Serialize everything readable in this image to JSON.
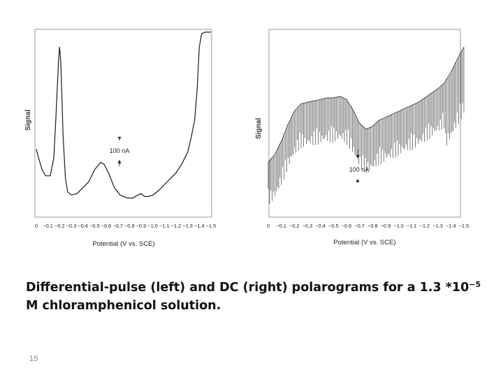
{
  "slide": {
    "caption_main": "Differential-pulse (left) and DC (right) polarograms for a 1.3 *10",
    "caption_exp": "−5",
    "caption_line2": "M chloramphenicol solution.",
    "page_number": "15"
  },
  "chart_data": [
    {
      "type": "line",
      "title": "",
      "xlabel": "Potential (V vs. SCE)",
      "ylabel": "Signal",
      "xlim": [
        0,
        -1.5
      ],
      "ticks": [
        "0",
        "−0.1",
        "−0.2",
        "−0.3",
        "−0.4",
        "−0.5",
        "−0.6",
        "−0.7",
        "−0.8",
        "−0.9",
        "−1.0",
        "−1.1",
        "−1.2",
        "−1.3",
        "−1.4",
        "−1.5"
      ],
      "annotation": "100 nA",
      "series": [
        {
          "x": [
            0,
            -0.02,
            -0.05,
            -0.08,
            -0.12,
            -0.15,
            -0.17,
            -0.19,
            -0.2,
            -0.21,
            -0.22,
            -0.23,
            -0.25,
            -0.27,
            -0.3,
            -0.35,
            -0.4,
            -0.45,
            -0.5,
            -0.55,
            -0.58,
            -0.62,
            -0.67,
            -0.72,
            -0.78,
            -0.83,
            -0.87,
            -0.9,
            -0.93,
            -0.96,
            -1.0,
            -1.05,
            -1.1,
            -1.15,
            -1.2,
            -1.25,
            -1.3,
            -1.33,
            -1.36,
            -1.38,
            -1.4,
            -1.42,
            -1.45,
            -1.5
          ],
          "y": [
            0.36,
            0.3,
            0.22,
            0.18,
            0.18,
            0.3,
            0.6,
            0.95,
            1.05,
            0.95,
            0.7,
            0.45,
            0.16,
            0.07,
            0.05,
            0.06,
            0.1,
            0.14,
            0.22,
            0.27,
            0.26,
            0.2,
            0.1,
            0.05,
            0.03,
            0.03,
            0.05,
            0.06,
            0.04,
            0.04,
            0.05,
            0.08,
            0.12,
            0.16,
            0.2,
            0.26,
            0.34,
            0.44,
            0.56,
            0.75,
            1.05,
            1.14,
            1.15,
            1.15
          ]
        }
      ]
    },
    {
      "type": "line",
      "title": "",
      "xlabel": "Potential (V vs. SCE)",
      "ylabel": "Signal",
      "xlim": [
        0,
        -1.5
      ],
      "ticks": [
        "0",
        "−0.1",
        "−0.2",
        "−0.3",
        "−0.4",
        "−0.5",
        "−0.6",
        "−0.7",
        "−0.8",
        "−0.9",
        "−1.0",
        "−1.1",
        "−1.2",
        "−1.3",
        "−1.4",
        "−1.5"
      ],
      "annotation": "100 nA",
      "series": [
        {
          "x": [
            0,
            -0.05,
            -0.1,
            -0.15,
            -0.2,
            -0.25,
            -0.3,
            -0.35,
            -0.4,
            -0.45,
            -0.5,
            -0.55,
            -0.6,
            -0.65,
            -0.7,
            -0.75,
            -0.8,
            -0.85,
            -0.9,
            -0.95,
            -1.0,
            -1.05,
            -1.1,
            -1.15,
            -1.2,
            -1.25,
            -1.3,
            -1.35,
            -1.4,
            -1.45,
            -1.5
          ],
          "y": [
            0.28,
            0.33,
            0.42,
            0.53,
            0.62,
            0.67,
            0.68,
            0.69,
            0.7,
            0.71,
            0.71,
            0.72,
            0.7,
            0.63,
            0.54,
            0.5,
            0.52,
            0.56,
            0.58,
            0.6,
            0.62,
            0.64,
            0.66,
            0.68,
            0.71,
            0.74,
            0.77,
            0.81,
            0.88,
            0.97,
            1.05
          ]
        }
      ]
    }
  ]
}
